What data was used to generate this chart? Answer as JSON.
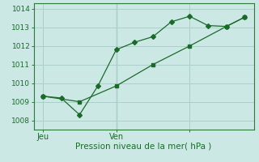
{
  "bg_color": "#cce8e4",
  "grid_color": "#aad0cc",
  "line_color": "#1a6b2a",
  "spine_color": "#2d7a3a",
  "x_ticks": [
    0,
    4,
    8
  ],
  "x_tick_labels": [
    "Jeu",
    "Ven",
    ""
  ],
  "y_ticks": [
    1008,
    1009,
    1010,
    1011,
    1012,
    1013,
    1014
  ],
  "ylim": [
    1007.5,
    1014.3
  ],
  "xlim": [
    -0.5,
    11.5
  ],
  "xlabel": "Pression niveau de la mer( hPa )",
  "line1_x": [
    0,
    1,
    2,
    3,
    4,
    5,
    6,
    7,
    8,
    9,
    10,
    11
  ],
  "line1_y": [
    1009.3,
    1009.2,
    1008.3,
    1009.85,
    1011.8,
    1012.2,
    1012.5,
    1013.3,
    1013.6,
    1013.1,
    1013.05,
    1013.55
  ],
  "line2_x": [
    0,
    2,
    4,
    6,
    8,
    10,
    11
  ],
  "line2_y": [
    1009.3,
    1009.0,
    1009.85,
    1011.0,
    1012.0,
    1013.05,
    1013.55
  ],
  "vline_x": 4
}
